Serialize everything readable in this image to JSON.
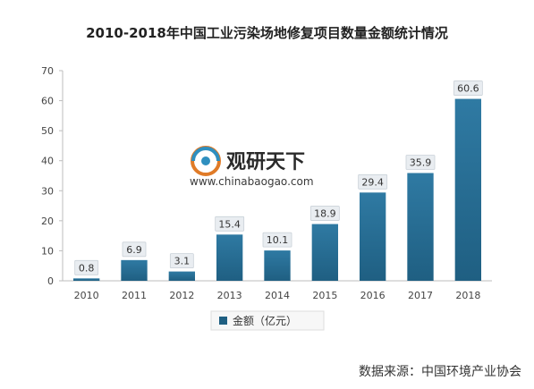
{
  "chart_data": {
    "type": "bar",
    "title": "2010-2018年中国工业污染场地修复项目数量金额统计情况",
    "categories": [
      "2010",
      "2011",
      "2012",
      "2013",
      "2014",
      "2015",
      "2016",
      "2017",
      "2018"
    ],
    "series": [
      {
        "name": "金额（亿元）",
        "values": [
          0.8,
          6.9,
          3.1,
          15.4,
          10.1,
          18.9,
          29.4,
          35.9,
          60.6
        ]
      }
    ],
    "data_labels": [
      "0.8",
      "6.9",
      "3.1",
      "15.4",
      "10.1",
      "18.9",
      "29.4",
      "35.9",
      "60.6"
    ],
    "ylim": [
      0,
      70
    ],
    "yticks": [
      "0",
      "10",
      "20",
      "30",
      "40",
      "50",
      "60",
      "70"
    ],
    "grid": false,
    "legend_position": "bottom",
    "colors": {
      "bar": "#1f5f82",
      "bar_top": "#2f7aa3",
      "label_box": "#e9edf1",
      "axis": "#bdbdbd"
    }
  },
  "watermark": {
    "brand": "观研天下",
    "url": "www.chinabaogao.com",
    "icon": "chinabaogao-logo-icon"
  },
  "source_note": "数据来源：中国环境产业协会"
}
